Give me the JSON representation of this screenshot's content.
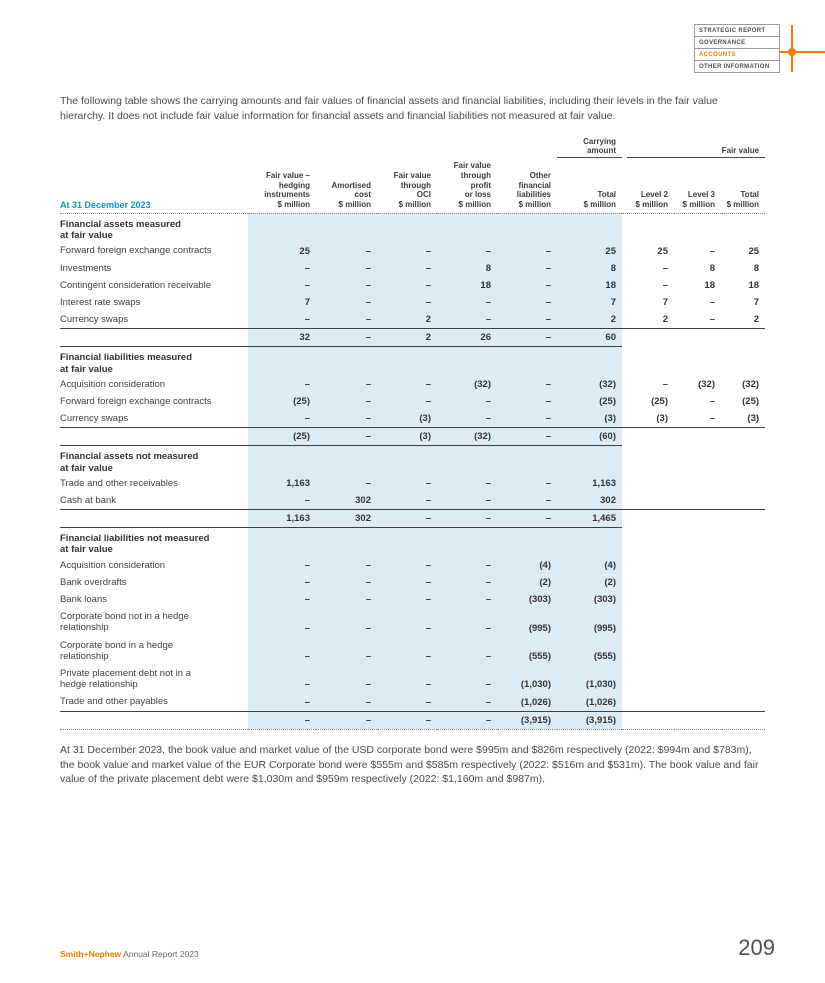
{
  "colors": {
    "accent_orange": "#f07d00",
    "heading_blue": "#0b95c8",
    "table_shading": "#dcecf7"
  },
  "nav": {
    "items": [
      {
        "label": "STRATEGIC REPORT"
      },
      {
        "label": "GOVERNANCE"
      },
      {
        "label": "ACCOUNTS",
        "active": true
      },
      {
        "label": "OTHER INFORMATION"
      }
    ]
  },
  "intro": "The following table shows the carrying amounts and fair values of financial assets and financial liabilities, including their levels in the fair value hierarchy. It does not include fair value information for financial assets and financial liabilities not measured at fair value.",
  "table": {
    "group_carrying": "Carrying\namount",
    "group_fair": "Fair value",
    "corner_label": "At 31 December 2023",
    "columns": [
      "Fair value –\nhedging\ninstruments\n$ million",
      "Amortised\ncost\n$ million",
      "Fair value\nthrough\nOCI\n$ million",
      "Fair value\nthrough\nprofit\nor loss\n$ million",
      "Other\nfinancial\nliabilities\n$ million",
      "Total\n$ million",
      "Level 2\n$ million",
      "Level 3\n$ million",
      "Total\n$ million"
    ],
    "sections": [
      {
        "title": "Financial assets measured\nat fair value",
        "rows": [
          {
            "label": "Forward foreign exchange contracts",
            "values": [
              "25",
              "–",
              "–",
              "–",
              "–",
              "25",
              "25",
              "–",
              "25"
            ]
          },
          {
            "label": "Investments",
            "values": [
              "–",
              "–",
              "–",
              "8",
              "–",
              "8",
              "–",
              "8",
              "8"
            ]
          },
          {
            "label": "Contingent consideration receivable",
            "values": [
              "–",
              "–",
              "–",
              "18",
              "–",
              "18",
              "–",
              "18",
              "18"
            ]
          },
          {
            "label": "Interest rate swaps",
            "values": [
              "7",
              "–",
              "–",
              "–",
              "–",
              "7",
              "7",
              "–",
              "7"
            ]
          },
          {
            "label": "Currency swaps",
            "values": [
              "–",
              "–",
              "2",
              "–",
              "–",
              "2",
              "2",
              "–",
              "2"
            ]
          }
        ],
        "subtotal": [
          "32",
          "–",
          "2",
          "26",
          "–",
          "60",
          "",
          "",
          ""
        ]
      },
      {
        "title": "Financial liabilities measured\nat fair value",
        "rows": [
          {
            "label": "Acquisition consideration",
            "values": [
              "–",
              "–",
              "–",
              "(32)",
              "–",
              "(32)",
              "–",
              "(32)",
              "(32)"
            ]
          },
          {
            "label": "Forward foreign exchange contracts",
            "values": [
              "(25)",
              "–",
              "–",
              "–",
              "–",
              "(25)",
              "(25)",
              "–",
              "(25)"
            ]
          },
          {
            "label": "Currency swaps",
            "values": [
              "–",
              "–",
              "(3)",
              "–",
              "–",
              "(3)",
              "(3)",
              "–",
              "(3)"
            ]
          }
        ],
        "subtotal": [
          "(25)",
          "–",
          "(3)",
          "(32)",
          "–",
          "(60)",
          "",
          "",
          ""
        ]
      },
      {
        "title": "Financial assets not measured\nat fair value",
        "rows": [
          {
            "label": "Trade and other receivables",
            "values": [
              "1,163",
              "–",
              "–",
              "–",
              "–",
              "1,163",
              "",
              "",
              ""
            ]
          },
          {
            "label": "Cash at bank",
            "values": [
              "–",
              "302",
              "–",
              "–",
              "–",
              "302",
              "",
              "",
              ""
            ]
          }
        ],
        "subtotal": [
          "1,163",
          "302",
          "–",
          "–",
          "–",
          "1,465",
          "",
          "",
          ""
        ]
      },
      {
        "title": "Financial liabilities not measured\nat fair value",
        "rows": [
          {
            "label": "Acquisition consideration",
            "values": [
              "–",
              "–",
              "–",
              "–",
              "(4)",
              "(4)",
              "",
              "",
              ""
            ]
          },
          {
            "label": "Bank overdrafts",
            "values": [
              "–",
              "–",
              "–",
              "–",
              "(2)",
              "(2)",
              "",
              "",
              ""
            ]
          },
          {
            "label": "Bank loans",
            "values": [
              "–",
              "–",
              "–",
              "–",
              "(303)",
              "(303)",
              "",
              "",
              ""
            ]
          },
          {
            "label": "Corporate bond not in a hedge\nrelationship",
            "values": [
              "–",
              "–",
              "–",
              "–",
              "(995)",
              "(995)",
              "",
              "",
              ""
            ]
          },
          {
            "label": "Corporate bond in a hedge\nrelationship",
            "values": [
              "–",
              "–",
              "–",
              "–",
              "(555)",
              "(555)",
              "",
              "",
              ""
            ]
          },
          {
            "label": "Private placement debt not in a\nhedge relationship",
            "values": [
              "–",
              "–",
              "–",
              "–",
              "(1,030)",
              "(1,030)",
              "",
              "",
              ""
            ]
          },
          {
            "label": "Trade and other payables",
            "values": [
              "–",
              "–",
              "–",
              "–",
              "(1,026)",
              "(1,026)",
              "",
              "",
              ""
            ]
          }
        ],
        "subtotal": [
          "–",
          "–",
          "–",
          "–",
          "(3,915)",
          "(3,915)",
          "",
          "",
          ""
        ]
      }
    ]
  },
  "footnote": "At 31 December 2023, the book value and market value of the USD corporate bond were $995m and $826m respectively (2022: $994m and $783m), the book value and market value of the EUR Corporate bond were $555m and $585m respectively (2022: $516m and $531m). The book value and fair value of the private placement debt were $1,030m and $959m respectively (2022: $1,160m and $987m).",
  "footer": {
    "brand": "Smith+Nephew",
    "suffix": " Annual Report 2023",
    "page": "209"
  }
}
